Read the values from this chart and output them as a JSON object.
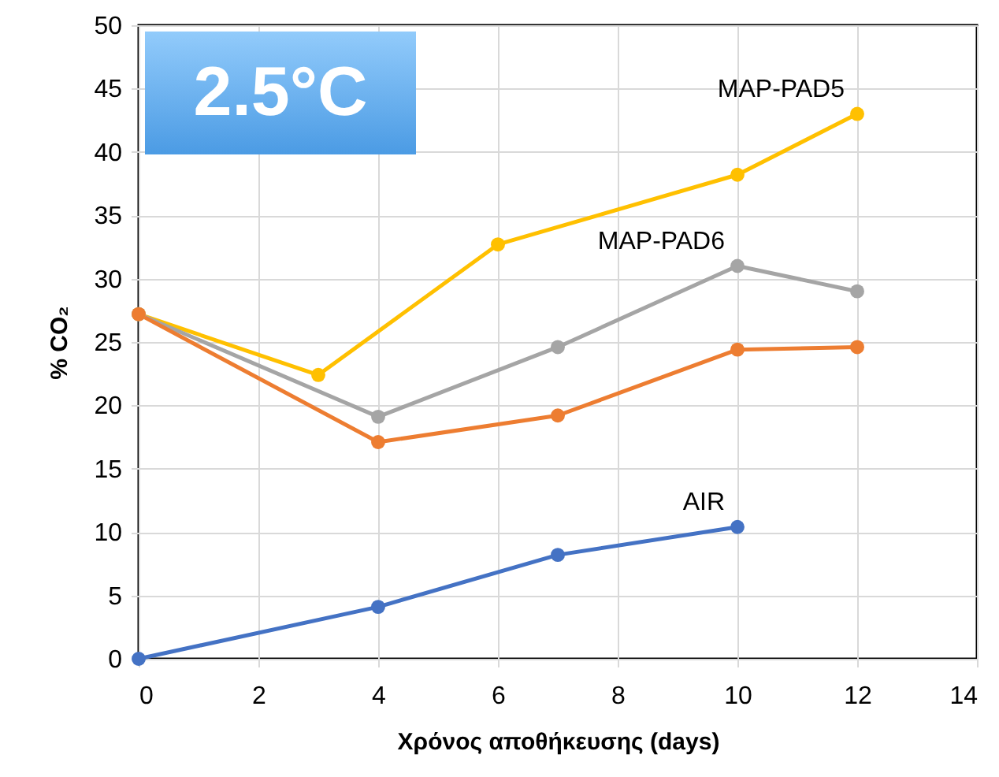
{
  "chart_data": {
    "type": "line",
    "xlabel": "Χρόνος αποθήκευσης (days)",
    "ylabel": "% CO₂",
    "annotations": [
      "2.5°C"
    ],
    "xlim": [
      0,
      14
    ],
    "xticks": [
      0,
      2,
      4,
      6,
      8,
      10,
      12,
      14
    ],
    "ylim": [
      0,
      50
    ],
    "yticks": [
      0,
      5,
      10,
      15,
      20,
      25,
      30,
      35,
      40,
      45,
      50
    ],
    "grid": true,
    "marker": "circle",
    "line_style": "solid",
    "series": [
      {
        "name": "MAP-PAD5",
        "color": "#ffc000",
        "x": [
          0,
          3,
          6,
          10,
          12
        ],
        "values": [
          27.2,
          22.4,
          32.7,
          38.2,
          43
        ]
      },
      {
        "name": "MAP-PAD6",
        "color": "#a5a5a5",
        "x": [
          0,
          4,
          7,
          10,
          12
        ],
        "values": [
          27.2,
          19.1,
          24.6,
          31,
          29
        ]
      },
      {
        "color": "#ed7d31",
        "x": [
          0,
          4,
          7,
          10,
          12
        ],
        "values": [
          27.2,
          17.1,
          19.2,
          24.4,
          24.6
        ]
      },
      {
        "name": "AIR",
        "color": "#4472c4",
        "x": [
          0,
          4,
          7,
          10
        ],
        "values": [
          0,
          4.1,
          8.2,
          10.4
        ]
      }
    ]
  }
}
